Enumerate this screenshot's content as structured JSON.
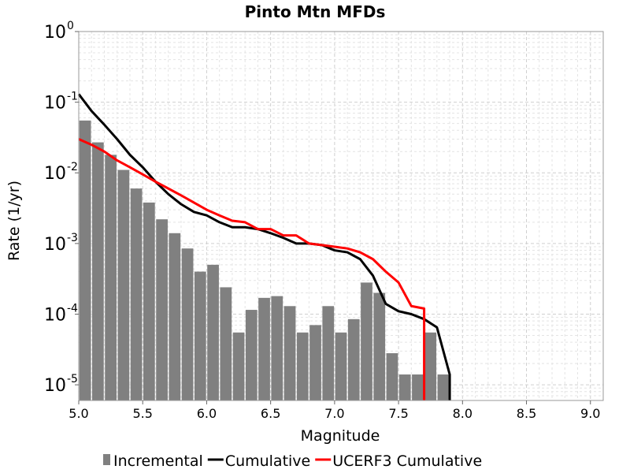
{
  "chart_data": {
    "type": "bar",
    "title": "Pinto Mtn MFDs",
    "xlabel": "Magnitude",
    "ylabel": "Rate (1/yr)",
    "xlim": [
      5.0,
      9.1
    ],
    "ylim": [
      6e-06,
      1.0
    ],
    "yscale": "log",
    "grid": true,
    "legend_position": "bottom",
    "x_ticks": [
      "5.0",
      "5.5",
      "6.0",
      "6.5",
      "7.0",
      "7.5",
      "8.0",
      "8.5",
      "9.0"
    ],
    "y_ticks": [
      {
        "base": "10",
        "exp": "0",
        "value": 1
      },
      {
        "base": "10",
        "exp": "-1",
        "value": 0.1
      },
      {
        "base": "10",
        "exp": "-2",
        "value": 0.01
      },
      {
        "base": "10",
        "exp": "-3",
        "value": 0.001
      },
      {
        "base": "10",
        "exp": "-4",
        "value": 0.0001
      },
      {
        "base": "10",
        "exp": "-5",
        "value": 1e-05
      }
    ],
    "series": [
      {
        "name": "Incremental",
        "type": "bar",
        "color": "#808080",
        "bar_width": 0.1,
        "x": [
          5.05,
          5.15,
          5.25,
          5.35,
          5.45,
          5.55,
          5.65,
          5.75,
          5.85,
          5.95,
          6.05,
          6.15,
          6.25,
          6.35,
          6.45,
          6.55,
          6.65,
          6.75,
          6.85,
          6.95,
          7.05,
          7.15,
          7.25,
          7.35,
          7.45,
          7.55,
          7.65,
          7.75,
          7.85
        ],
        "values": [
          0.055,
          0.027,
          0.018,
          0.011,
          0.006,
          0.0038,
          0.0022,
          0.0014,
          0.00085,
          0.0004,
          0.0005,
          0.00024,
          5.5e-05,
          0.000115,
          0.00017,
          0.00018,
          0.00013,
          5.5e-05,
          7e-05,
          0.00013,
          5.5e-05,
          8.5e-05,
          0.00028,
          0.0002,
          2.8e-05,
          1.4e-05,
          1.4e-05,
          5.5e-05,
          1.4e-05
        ]
      },
      {
        "name": "Cumulative",
        "type": "line",
        "color": "#000000",
        "x": [
          5.0,
          5.1,
          5.2,
          5.3,
          5.4,
          5.5,
          5.6,
          5.7,
          5.8,
          5.9,
          6.0,
          6.1,
          6.2,
          6.3,
          6.4,
          6.5,
          6.6,
          6.7,
          6.8,
          6.9,
          7.0,
          7.1,
          7.2,
          7.3,
          7.4,
          7.5,
          7.6,
          7.7,
          7.8,
          7.9,
          7.9
        ],
        "values": [
          0.13,
          0.075,
          0.048,
          0.03,
          0.018,
          0.012,
          0.0075,
          0.005,
          0.0036,
          0.0028,
          0.0025,
          0.002,
          0.0017,
          0.0017,
          0.0016,
          0.0014,
          0.0012,
          0.001,
          0.001,
          0.00095,
          0.0008,
          0.00075,
          0.0006,
          0.00035,
          0.00014,
          0.00011,
          0.0001,
          8.5e-05,
          6.5e-05,
          1.4e-05,
          6e-06
        ]
      },
      {
        "name": "UCERF3 Cumulative",
        "type": "line",
        "color": "#ff0000",
        "x": [
          5.0,
          5.1,
          5.2,
          5.3,
          5.4,
          5.5,
          5.6,
          5.7,
          5.8,
          5.9,
          6.0,
          6.1,
          6.2,
          6.3,
          6.4,
          6.5,
          6.6,
          6.7,
          6.8,
          6.9,
          7.0,
          7.1,
          7.2,
          7.3,
          7.4,
          7.5,
          7.6,
          7.7,
          7.7
        ],
        "values": [
          0.03,
          0.025,
          0.02,
          0.015,
          0.012,
          0.0095,
          0.0075,
          0.006,
          0.0048,
          0.0038,
          0.003,
          0.0025,
          0.0021,
          0.002,
          0.0016,
          0.0016,
          0.0013,
          0.0013,
          0.001,
          0.00095,
          0.0009,
          0.00085,
          0.00075,
          0.0006,
          0.0004,
          0.00028,
          0.00013,
          0.00012,
          6e-06
        ]
      }
    ],
    "legend": [
      {
        "label": "Incremental",
        "color": "#808080",
        "kind": "bar"
      },
      {
        "label": "Cumulative",
        "color": "#000000",
        "kind": "line"
      },
      {
        "label": "UCERF3 Cumulative",
        "color": "#ff0000",
        "kind": "line"
      }
    ]
  }
}
